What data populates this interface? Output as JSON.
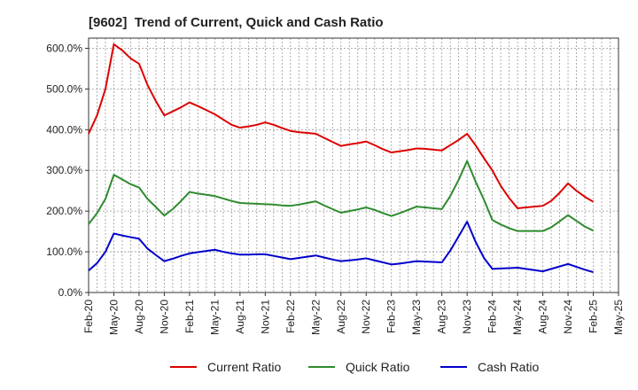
{
  "chart_data": {
    "type": "line",
    "title": "[9602]  Trend of Current, Quick and Cash Ratio",
    "xlabel": "",
    "ylabel": "",
    "ylim": [
      0,
      625
    ],
    "y_ticks": [
      0,
      100,
      200,
      300,
      400,
      500,
      600
    ],
    "y_tick_labels": [
      "0.0%",
      "100.0%",
      "200.0%",
      "300.0%",
      "400.0%",
      "500.0%",
      "600.0%"
    ],
    "x_tick_labels": [
      "Feb-20",
      "May-20",
      "Aug-20",
      "Nov-20",
      "Feb-21",
      "May-21",
      "Aug-21",
      "Nov-21",
      "Feb-22",
      "May-22",
      "Aug-22",
      "Nov-22",
      "Feb-23",
      "May-23",
      "Aug-23",
      "Nov-23",
      "Feb-24",
      "May-24",
      "Aug-24",
      "Nov-24",
      "Feb-25",
      "May-25"
    ],
    "x": [
      0,
      1,
      2,
      3,
      4,
      5,
      6,
      7,
      8,
      9,
      10,
      11,
      12,
      13,
      14,
      15,
      16,
      17,
      18,
      19,
      20,
      21,
      22,
      23,
      24,
      25,
      26,
      27,
      28,
      29,
      30,
      31,
      32,
      33,
      34,
      35,
      36,
      37,
      38,
      39,
      40,
      41,
      42,
      43,
      44,
      45,
      46,
      47,
      48,
      49,
      50,
      51,
      52,
      53,
      54,
      55,
      56,
      57,
      58,
      59,
      60
    ],
    "grid": true,
    "legend_position": "bottom",
    "series": [
      {
        "name": "Current Ratio",
        "color": "#dd0000",
        "values": [
          390,
          435,
          500,
          610,
          595,
          575,
          562,
          510,
          470,
          435,
          445,
          455,
          467,
          458,
          448,
          438,
          425,
          412,
          405,
          408,
          412,
          418,
          412,
          404,
          397,
          394,
          392,
          390,
          380,
          370,
          360,
          364,
          367,
          371,
          362,
          352,
          344,
          347,
          350,
          354,
          353,
          351,
          349,
          362,
          375,
          390,
          362,
          330,
          300,
          262,
          232,
          207,
          209,
          211,
          213,
          225,
          245,
          268,
          250,
          235,
          223
        ]
      },
      {
        "name": "Quick Ratio",
        "color": "#2e8b2e",
        "values": [
          168,
          195,
          230,
          289,
          278,
          266,
          258,
          230,
          210,
          189,
          205,
          225,
          247,
          243,
          240,
          237,
          231,
          225,
          220,
          219,
          218,
          217,
          216,
          214,
          213,
          216,
          220,
          224,
          214,
          205,
          196,
          200,
          204,
          209,
          203,
          195,
          188,
          195,
          203,
          211,
          209,
          207,
          205,
          237,
          277,
          323,
          273,
          228,
          178,
          167,
          158,
          151,
          151,
          151,
          151,
          160,
          175,
          190,
          176,
          162,
          152
        ]
      },
      {
        "name": "Cash Ratio",
        "color": "#0000cc",
        "values": [
          54,
          72,
          100,
          145,
          140,
          136,
          132,
          108,
          92,
          77,
          83,
          90,
          96,
          99,
          102,
          105,
          100,
          96,
          93,
          93,
          94,
          94,
          90,
          86,
          82,
          85,
          88,
          91,
          86,
          81,
          77,
          79,
          81,
          84,
          79,
          74,
          69,
          71,
          74,
          77,
          76,
          75,
          74,
          103,
          138,
          174,
          125,
          85,
          58,
          59,
          60,
          61,
          58,
          55,
          52,
          58,
          64,
          70,
          63,
          56,
          50
        ]
      }
    ]
  }
}
